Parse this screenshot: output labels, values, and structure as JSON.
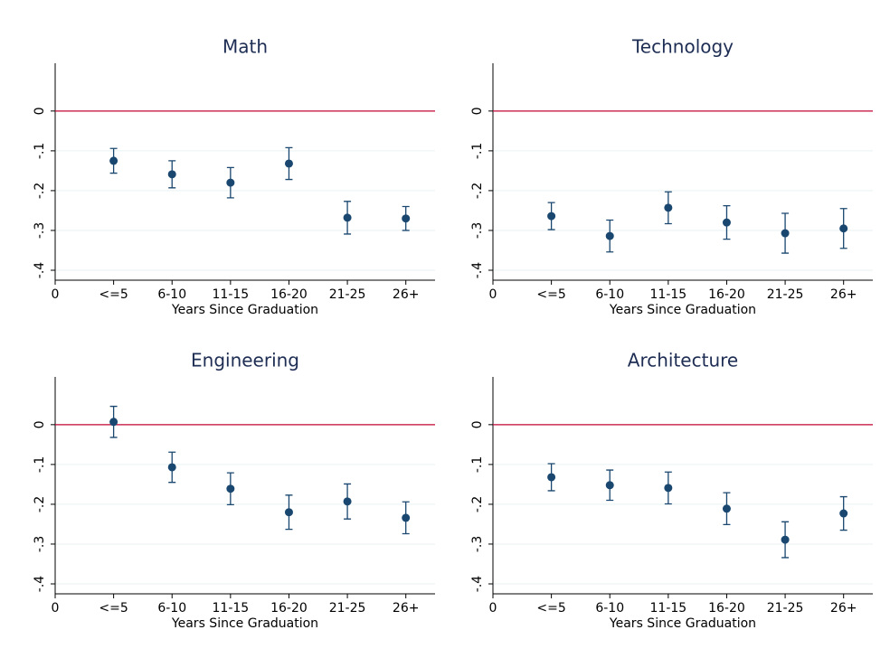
{
  "chart_data": [
    {
      "type": "scatter",
      "title": "Math",
      "xlabel": "Years Since Graduation",
      "x": [
        1,
        2,
        3,
        4,
        5,
        6
      ],
      "values": [
        -0.125,
        -0.159,
        -0.18,
        -0.132,
        -0.268,
        -0.27
      ],
      "errors": [
        0.031,
        0.034,
        0.038,
        0.04,
        0.041,
        0.03
      ],
      "color": "#1a476f",
      "reference_line": 0,
      "reference_color": "#c10534",
      "xlim": [
        0,
        6.5
      ],
      "xticks": [
        0,
        {
          "value": 1,
          "label": "<=5"
        },
        {
          "value": 2,
          "label": "6-10"
        },
        {
          "value": 3,
          "label": "11-15"
        },
        {
          "value": 4,
          "label": "16-20"
        },
        {
          "value": 5,
          "label": "21-25"
        },
        {
          "value": 6,
          "label": "26+"
        }
      ],
      "ylim": [
        -0.425,
        0.12
      ],
      "yticks": [
        0,
        {
          "value": -0.1,
          "label": "-.1"
        },
        {
          "value": -0.2,
          "label": "-.2"
        },
        {
          "value": -0.3,
          "label": "-.3"
        },
        {
          "value": -0.4,
          "label": "-.4"
        }
      ],
      "grid": true
    },
    {
      "type": "scatter",
      "title": "Technology",
      "xlabel": "Years Since Graduation",
      "x": [
        1,
        2,
        3,
        4,
        5,
        6
      ],
      "values": [
        -0.264,
        -0.314,
        -0.243,
        -0.28,
        -0.307,
        -0.295
      ],
      "errors": [
        0.034,
        0.04,
        0.04,
        0.042,
        0.05,
        0.05
      ],
      "color": "#1a476f",
      "reference_line": 0,
      "reference_color": "#c10534",
      "xlim": [
        0,
        6.5
      ],
      "xticks": [
        0,
        {
          "value": 1,
          "label": "<=5"
        },
        {
          "value": 2,
          "label": "6-10"
        },
        {
          "value": 3,
          "label": "11-15"
        },
        {
          "value": 4,
          "label": "16-20"
        },
        {
          "value": 5,
          "label": "21-25"
        },
        {
          "value": 6,
          "label": "26+"
        }
      ],
      "ylim": [
        -0.425,
        0.12
      ],
      "yticks": [
        0,
        {
          "value": -0.1,
          "label": "-.1"
        },
        {
          "value": -0.2,
          "label": "-.2"
        },
        {
          "value": -0.3,
          "label": "-.3"
        },
        {
          "value": -0.4,
          "label": "-.4"
        }
      ],
      "grid": true
    },
    {
      "type": "scatter",
      "title": "Engineering",
      "xlabel": "Years Since Graduation",
      "x": [
        1,
        2,
        3,
        4,
        5,
        6
      ],
      "values": [
        0.007,
        -0.107,
        -0.161,
        -0.22,
        -0.193,
        -0.234
      ],
      "errors": [
        0.039,
        0.038,
        0.04,
        0.043,
        0.044,
        0.04
      ],
      "color": "#1a476f",
      "reference_line": 0,
      "reference_color": "#c10534",
      "xlim": [
        0,
        6.5
      ],
      "xticks": [
        0,
        {
          "value": 1,
          "label": "<=5"
        },
        {
          "value": 2,
          "label": "6-10"
        },
        {
          "value": 3,
          "label": "11-15"
        },
        {
          "value": 4,
          "label": "16-20"
        },
        {
          "value": 5,
          "label": "21-25"
        },
        {
          "value": 6,
          "label": "26+"
        }
      ],
      "ylim": [
        -0.425,
        0.12
      ],
      "yticks": [
        0,
        {
          "value": -0.1,
          "label": "-.1"
        },
        {
          "value": -0.2,
          "label": "-.2"
        },
        {
          "value": -0.3,
          "label": "-.3"
        },
        {
          "value": -0.4,
          "label": "-.4"
        }
      ],
      "grid": true
    },
    {
      "type": "scatter",
      "title": "Architecture",
      "xlabel": "Years Since Graduation",
      "x": [
        1,
        2,
        3,
        4,
        5,
        6
      ],
      "values": [
        -0.132,
        -0.152,
        -0.159,
        -0.211,
        -0.289,
        -0.223
      ],
      "errors": [
        0.034,
        0.038,
        0.04,
        0.04,
        0.045,
        0.042
      ],
      "color": "#1a476f",
      "reference_line": 0,
      "reference_color": "#c10534",
      "xlim": [
        0,
        6.5
      ],
      "xticks": [
        0,
        {
          "value": 1,
          "label": "<=5"
        },
        {
          "value": 2,
          "label": "6-10"
        },
        {
          "value": 3,
          "label": "11-15"
        },
        {
          "value": 4,
          "label": "16-20"
        },
        {
          "value": 5,
          "label": "21-25"
        },
        {
          "value": 6,
          "label": "26+"
        }
      ],
      "ylim": [
        -0.425,
        0.12
      ],
      "yticks": [
        0,
        {
          "value": -0.1,
          "label": "-.1"
        },
        {
          "value": -0.2,
          "label": "-.2"
        },
        {
          "value": -0.3,
          "label": "-.3"
        },
        {
          "value": -0.4,
          "label": "-.4"
        }
      ],
      "grid": true
    }
  ]
}
